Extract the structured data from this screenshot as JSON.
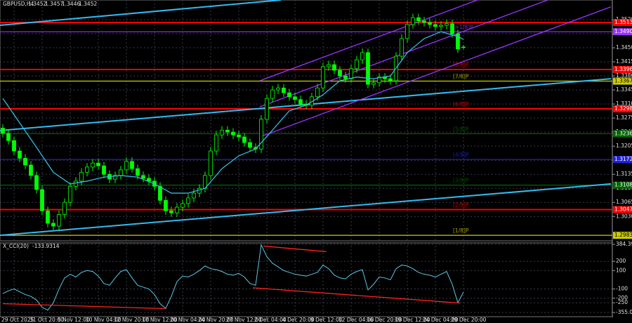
{
  "chart_data": [
    {
      "type": "candlestick",
      "title": "GBPUSD,H4",
      "up_color": "#00ff00",
      "down_color": "#00ff00",
      "grid": true,
      "categories": [
        null,
        null,
        "29 Oct 2025",
        null,
        null,
        null,
        null,
        "31 Oct 20:00",
        null,
        null,
        null,
        null,
        "5 Nov 12:00",
        null,
        null,
        null,
        null,
        "10 Nov 04:00",
        null,
        null,
        null,
        null,
        "12 Nov 20:00",
        null,
        null,
        null,
        null,
        "17 Nov 12:00",
        null,
        null,
        null,
        null,
        "20 Nov 04:00",
        null,
        null,
        null,
        null,
        "24 Nov 20:00",
        null,
        null,
        null,
        null,
        "27 Nov 12:00",
        null,
        null,
        null,
        null,
        "2 Dec 04:00",
        null,
        null,
        null,
        null,
        "4 Dec 20:00",
        null,
        null,
        null,
        null,
        "9 Dec 12:00",
        null,
        null,
        null,
        null,
        "12 Dec 04:00",
        null,
        null,
        null,
        null,
        "16 Dec 20:00",
        null,
        null,
        null,
        null,
        "19 Dec 12:00",
        null,
        null,
        null,
        null,
        "24 Dec 04:00",
        null,
        null,
        null,
        null,
        "29 Dec 20:00"
      ],
      "open": [
        1.325,
        1.3237,
        1.3219,
        1.3193,
        1.3175,
        1.3158,
        1.3132,
        1.3097,
        1.3044,
        1.3013,
        1.3006,
        1.3035,
        1.3065,
        1.3105,
        1.3118,
        1.314,
        1.3153,
        1.3163,
        1.3156,
        1.3135,
        1.3123,
        1.3132,
        1.3146,
        1.3167,
        1.3149,
        1.3132,
        1.3125,
        1.3118,
        1.3105,
        1.307,
        1.3044,
        1.3039,
        1.3053,
        1.3062,
        1.3076,
        1.3088,
        1.31,
        1.3132,
        1.3193,
        1.3233,
        1.3245,
        1.324,
        1.3233,
        1.3228,
        1.3214,
        1.3202,
        1.3198,
        1.3272,
        1.3324,
        1.3345,
        1.335,
        1.3338,
        1.3328,
        1.3321,
        1.331,
        1.3307,
        1.3328,
        1.335,
        1.3403,
        1.3408,
        1.3394,
        1.338,
        1.3373,
        1.3398,
        1.342,
        1.3438,
        1.3359,
        1.3363,
        1.3377,
        1.3373,
        1.3368,
        1.3429,
        1.3473,
        1.3508,
        1.3525,
        1.3517,
        1.3513,
        1.3508,
        1.3503,
        1.3506,
        1.351,
        1.3485,
        1.3452
      ],
      "high": [
        1.326,
        1.3247,
        1.3229,
        1.3203,
        1.3185,
        1.3168,
        1.3142,
        1.3107,
        1.3054,
        1.3023,
        1.3045,
        1.3075,
        1.3115,
        1.3128,
        1.315,
        1.3163,
        1.3173,
        1.3173,
        1.3166,
        1.3145,
        1.3142,
        1.3156,
        1.3177,
        1.3177,
        1.3159,
        1.3142,
        1.3135,
        1.3128,
        1.3115,
        1.308,
        1.3054,
        1.3063,
        1.3072,
        1.3086,
        1.3098,
        1.311,
        1.3142,
        1.3203,
        1.3243,
        1.3255,
        1.3255,
        1.325,
        1.3243,
        1.3238,
        1.3224,
        1.3212,
        1.3282,
        1.3334,
        1.3355,
        1.336,
        1.336,
        1.3348,
        1.3338,
        1.3331,
        1.332,
        1.3338,
        1.336,
        1.3413,
        1.3418,
        1.3418,
        1.3404,
        1.339,
        1.3408,
        1.343,
        1.3448,
        1.3448,
        1.3373,
        1.3387,
        1.3387,
        1.3383,
        1.3439,
        1.3483,
        1.3518,
        1.3535,
        1.3535,
        1.3527,
        1.3523,
        1.3518,
        1.3516,
        1.352,
        1.352,
        1.3495,
        1.3457
      ],
      "low": [
        1.3227,
        1.3209,
        1.3183,
        1.3165,
        1.3148,
        1.3122,
        1.3087,
        1.3034,
        1.3003,
        1.2996,
        1.2996,
        1.3025,
        1.3055,
        1.3095,
        1.3108,
        1.313,
        1.3143,
        1.3146,
        1.3125,
        1.3113,
        1.3113,
        1.3122,
        1.3136,
        1.3139,
        1.3122,
        1.3115,
        1.3108,
        1.3095,
        1.306,
        1.3034,
        1.3029,
        1.3029,
        1.3043,
        1.3052,
        1.3066,
        1.3078,
        1.309,
        1.3122,
        1.3183,
        1.3223,
        1.323,
        1.3223,
        1.3218,
        1.3204,
        1.3192,
        1.3188,
        1.3188,
        1.3262,
        1.3314,
        1.3335,
        1.3328,
        1.3318,
        1.3311,
        1.33,
        1.3297,
        1.3297,
        1.3318,
        1.334,
        1.3393,
        1.3384,
        1.337,
        1.3363,
        1.3363,
        1.3388,
        1.341,
        1.3349,
        1.3349,
        1.3353,
        1.3363,
        1.3358,
        1.3358,
        1.3419,
        1.3463,
        1.3498,
        1.3507,
        1.3503,
        1.3498,
        1.3493,
        1.3493,
        1.3496,
        1.3475,
        1.3437,
        1.3446
      ],
      "close": [
        1.3237,
        1.3219,
        1.3193,
        1.3175,
        1.3158,
        1.3132,
        1.3097,
        1.3044,
        1.3013,
        1.3006,
        1.3035,
        1.3065,
        1.3105,
        1.3118,
        1.314,
        1.3153,
        1.3163,
        1.3156,
        1.3135,
        1.3123,
        1.3132,
        1.3146,
        1.3167,
        1.3149,
        1.3132,
        1.3125,
        1.3118,
        1.3105,
        1.307,
        1.3044,
        1.3039,
        1.3053,
        1.3062,
        1.3076,
        1.3088,
        1.31,
        1.3132,
        1.3193,
        1.3233,
        1.3245,
        1.324,
        1.3233,
        1.3228,
        1.3214,
        1.3202,
        1.3198,
        1.3272,
        1.3324,
        1.3345,
        1.335,
        1.3338,
        1.3328,
        1.3321,
        1.331,
        1.3307,
        1.3328,
        1.335,
        1.3403,
        1.3408,
        1.3394,
        1.338,
        1.3373,
        1.3398,
        1.342,
        1.3438,
        1.3359,
        1.3363,
        1.3377,
        1.3373,
        1.3368,
        1.3429,
        1.3473,
        1.3508,
        1.3525,
        1.3517,
        1.3513,
        1.3508,
        1.3503,
        1.3506,
        1.351,
        1.3485,
        1.3447,
        1.3452
      ],
      "ylim": [
        1.2971,
        1.3569
      ],
      "yticks": [
        {
          "value": 1.303,
          "label": "1.3030"
        },
        1.3065,
        {
          "value": 1.31,
          "label": "1.3100"
        },
        1.3135,
        {
          "value": 1.317,
          "label": "1.3170"
        },
        1.3205,
        {
          "value": 1.324,
          "label": "1.3240"
        },
        1.3275,
        {
          "value": 1.331,
          "label": "1.3310"
        },
        1.3345,
        {
          "value": 1.338,
          "label": "1.3380"
        },
        1.3415,
        {
          "value": 1.345,
          "label": "1.3450"
        },
        1.3485,
        {
          "value": 1.352,
          "label": "1.3520"
        }
      ],
      "ma": {
        "color": "#33bbdd",
        "x": [
          0,
          3,
          6,
          9,
          12,
          15,
          18,
          21,
          24,
          27,
          30,
          33,
          36,
          39,
          42,
          45,
          48,
          51,
          54,
          57,
          60,
          63,
          66,
          69,
          72,
          75,
          78,
          81,
          82
        ],
        "values": [
          1.3324,
          1.3263,
          1.3202,
          1.314,
          1.3111,
          1.3118,
          1.3128,
          1.3132,
          1.3128,
          1.3111,
          1.3088,
          1.3088,
          1.31,
          1.3149,
          1.3181,
          1.3198,
          1.3245,
          1.3293,
          1.3307,
          1.3333,
          1.3368,
          1.3377,
          1.3373,
          1.338,
          1.3438,
          1.3473,
          1.349,
          1.3478,
          1.3471
        ]
      },
      "trendlines": [
        {
          "color": "#33bbee",
          "x": [
            -0.5,
            49.5
          ],
          "values": [
            1.3506,
            1.3569
          ]
        },
        {
          "color": "#33bbee",
          "x": [
            -0.5,
            108.25
          ],
          "values": [
            1.3244,
            1.3373
          ]
        },
        {
          "color": "#33bbee",
          "x": [
            -0.5,
            108.25
          ],
          "values": [
            1.2983,
            1.3111
          ]
        },
        {
          "color": "#9933ff",
          "x": [
            45.75,
            84.5
          ],
          "values": [
            1.3368,
            1.3569
          ]
        },
        {
          "color": "#9933ff",
          "x": [
            45.75,
            97
          ],
          "values": [
            1.3303,
            1.3569
          ]
        },
        {
          "color": "#9933ff",
          "x": [
            45.75,
            108.25
          ],
          "values": [
            1.3228,
            1.3552
          ]
        }
      ],
      "levels": [
        {
          "price": 1.3513,
          "color": "#ff0000",
          "label": "1.3513"
        },
        {
          "price": 1.349,
          "color": "#9933ff",
          "label": "1.3490",
          "tag": "[+1/8]P"
        },
        {
          "price": 1.3396,
          "color": "#ff0000",
          "label": "1.3396",
          "tag": "[8/8]P"
        },
        {
          "price": 1.3367,
          "color": "#cccc00",
          "label": "1.3367",
          "tag": "[7/8]P"
        },
        {
          "price": 1.3298,
          "color": "#ff0000",
          "label": "1.3298",
          "tag": "[6/8]P"
        },
        {
          "price": 1.3236,
          "color": "#006600",
          "label": "1.3236",
          "tag": "[5/8]P"
        },
        {
          "price": 1.3172,
          "color": "#2222dd",
          "label": "1.3172",
          "tag": "[4/8]P"
        },
        {
          "price": 1.3108,
          "color": "#006600",
          "label": "1.3108",
          "tag": "[3/8]P"
        },
        {
          "price": 1.3047,
          "color": "#ff0000",
          "label": "1.3047",
          "tag": "[2/8]P"
        },
        {
          "price": 1.2983,
          "color": "#cccc00",
          "label": "1.2983",
          "tag": "[1/8]P"
        }
      ]
    },
    {
      "type": "line",
      "title": "X_CCI(20)",
      "color": "#5bc8e6",
      "values": [
        -150,
        -120,
        -100,
        -130,
        -160,
        -180,
        -220,
        -300,
        -330,
        -250,
        -100,
        20,
        60,
        30,
        80,
        100,
        90,
        40,
        -40,
        -60,
        20,
        90,
        110,
        20,
        -60,
        -80,
        -100,
        -160,
        -260,
        -310,
        -180,
        -20,
        40,
        30,
        60,
        100,
        150,
        120,
        110,
        90,
        60,
        50,
        70,
        30,
        -40,
        -60,
        380,
        250,
        180,
        140,
        100,
        80,
        60,
        50,
        40,
        60,
        80,
        160,
        120,
        50,
        20,
        10,
        60,
        90,
        110,
        -110,
        -50,
        30,
        20,
        0,
        120,
        160,
        150,
        120,
        80,
        60,
        50,
        30,
        60,
        90,
        -50,
        -250,
        -133.9314
      ],
      "ylim": [
        -355.0351,
        384.3971
      ],
      "yticks": [
        384.3971,
        200,
        100,
        -100,
        -200,
        -250,
        -355.0351
      ],
      "divergences": [
        {
          "color": "#ff2222",
          "x": [
            0,
            28.9
          ],
          "values": [
            -260,
            -313
          ]
        },
        {
          "color": "#ff2222",
          "x": [
            46.4,
            57.6
          ],
          "values": [
            366,
            305
          ]
        },
        {
          "color": "#ff2222",
          "x": [
            44.5,
            81.4
          ],
          "values": [
            -87,
            -253
          ]
        }
      ]
    }
  ]
}
